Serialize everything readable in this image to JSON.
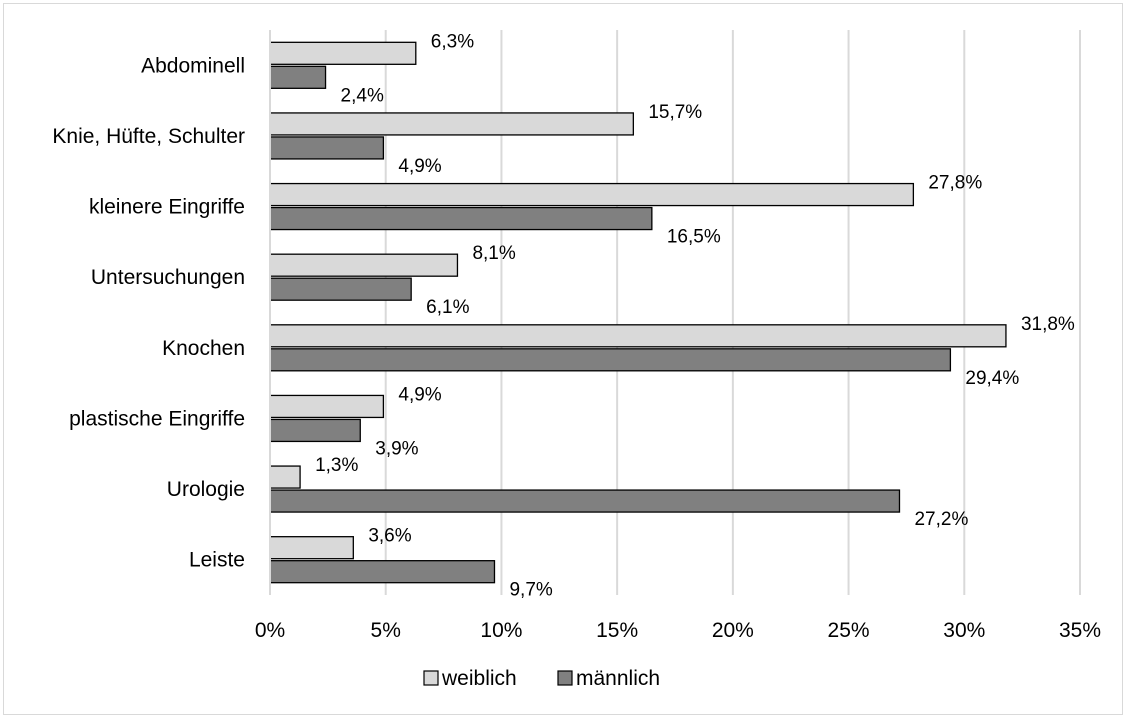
{
  "chart_data": {
    "type": "bar",
    "orientation": "horizontal",
    "categories": [
      "Abdominell",
      "Knie, Hüfte, Schulter",
      "kleinere Eingriffe",
      "Untersuchungen",
      "Knochen",
      "plastische Eingriffe",
      "Urologie",
      "Leiste"
    ],
    "series": [
      {
        "name": "weiblich",
        "color": "#d9d9d9",
        "values": [
          6.3,
          15.7,
          27.8,
          8.1,
          31.8,
          4.9,
          1.3,
          3.6
        ],
        "labels": [
          "6,3%",
          "15,7%",
          "27,8%",
          "8,1%",
          "31,8%",
          "4,9%",
          "1,3%",
          "3,6%"
        ]
      },
      {
        "name": "männlich",
        "color": "#808080",
        "values": [
          2.4,
          4.9,
          16.5,
          6.1,
          29.4,
          3.9,
          27.2,
          9.7
        ],
        "labels": [
          "2,4%",
          "4,9%",
          "16,5%",
          "6,1%",
          "29,4%",
          "3,9%",
          "27,2%",
          "9,7%"
        ]
      }
    ],
    "xlim": [
      0,
      35
    ],
    "xticks": [
      0,
      5,
      10,
      15,
      20,
      25,
      30,
      35
    ],
    "xtick_labels": [
      "0%",
      "5%",
      "10%",
      "15%",
      "20%",
      "25%",
      "30%",
      "35%"
    ],
    "grid": "vertical",
    "legend_position": "bottom",
    "title": "",
    "xlabel": "",
    "ylabel": ""
  }
}
